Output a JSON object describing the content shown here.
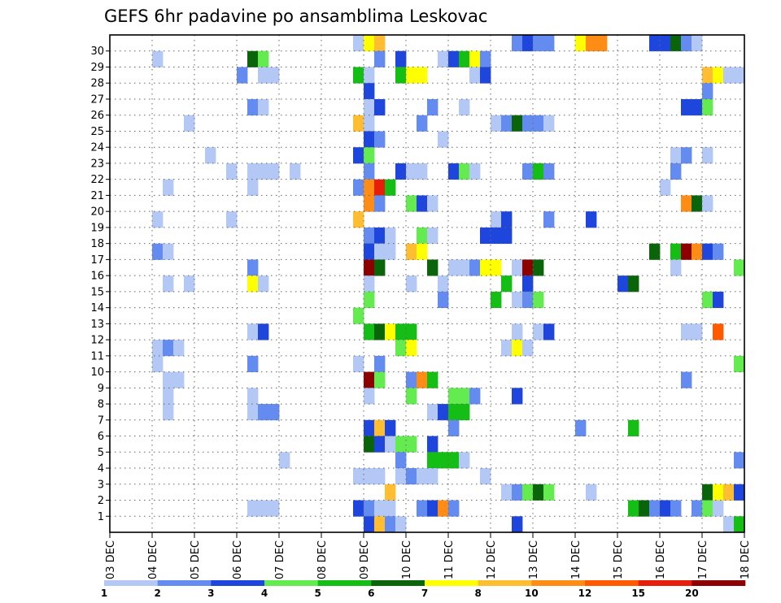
{
  "chart_data": {
    "type": "heatmap",
    "title": "GEFS 6hr padavine po ansamblima Leskovac",
    "xlabel": "",
    "ylabel": "",
    "x_tick_labels": [
      "03 DEC",
      "04 DEC",
      "05 DEC",
      "06 DEC",
      "07 DEC",
      "08 DEC",
      "09 DEC",
      "10 DEC",
      "11 DEC",
      "12 DEC",
      "13 DEC",
      "14 DEC",
      "15 DEC",
      "16 DEC",
      "17 DEC",
      "18 DEC"
    ],
    "y_members": [
      1,
      2,
      3,
      4,
      5,
      6,
      7,
      8,
      9,
      10,
      11,
      12,
      13,
      14,
      15,
      16,
      17,
      18,
      19,
      20,
      21,
      22,
      23,
      24,
      25,
      26,
      27,
      28,
      29,
      30
    ],
    "steps_per_day": 4,
    "grid": true,
    "legend_placement": "bottom",
    "color_bins": [
      {
        "label": "1",
        "color": "#b4c8f5"
      },
      {
        "label": "2",
        "color": "#648cf0"
      },
      {
        "label": "3",
        "color": "#1e46dc"
      },
      {
        "label": "4",
        "color": "#64eb50"
      },
      {
        "label": "5",
        "color": "#14be14"
      },
      {
        "label": "6",
        "color": "#0a640a"
      },
      {
        "label": "7",
        "color": "#ffff00"
      },
      {
        "label": "8",
        "color": "#ffbe32"
      },
      {
        "label": "10",
        "color": "#ff8c14"
      },
      {
        "label": "12",
        "color": "#ff5a00"
      },
      {
        "label": "15",
        "color": "#e61e0a"
      },
      {
        "label": "20",
        "color": "#8c0000"
      }
    ],
    "cells": [
      [
        30,
        23,
        0
      ],
      [
        30,
        24,
        6
      ],
      [
        30,
        25,
        7
      ],
      [
        30,
        38,
        1
      ],
      [
        30,
        39,
        2
      ],
      [
        30,
        40,
        1
      ],
      [
        30,
        41,
        1
      ],
      [
        30,
        44,
        6
      ],
      [
        30,
        45,
        8
      ],
      [
        30,
        46,
        8
      ],
      [
        30,
        51,
        2
      ],
      [
        30,
        52,
        2
      ],
      [
        30,
        53,
        5
      ],
      [
        30,
        54,
        1
      ],
      [
        30,
        55,
        0
      ],
      [
        29,
        4,
        0
      ],
      [
        29,
        13,
        5
      ],
      [
        29,
        14,
        3
      ],
      [
        29,
        25,
        1
      ],
      [
        29,
        27,
        2
      ],
      [
        29,
        31,
        0
      ],
      [
        29,
        32,
        2
      ],
      [
        29,
        33,
        4
      ],
      [
        29,
        34,
        6
      ],
      [
        29,
        35,
        1
      ],
      [
        28,
        12,
        1
      ],
      [
        28,
        14,
        0
      ],
      [
        28,
        15,
        0
      ],
      [
        28,
        23,
        4
      ],
      [
        28,
        24,
        0
      ],
      [
        28,
        27,
        4
      ],
      [
        28,
        28,
        6
      ],
      [
        28,
        29,
        6
      ],
      [
        28,
        34,
        0
      ],
      [
        28,
        35,
        2
      ],
      [
        28,
        56,
        7
      ],
      [
        28,
        57,
        6
      ],
      [
        28,
        58,
        0
      ],
      [
        28,
        59,
        0
      ],
      [
        27,
        24,
        2
      ],
      [
        27,
        56,
        1
      ],
      [
        26,
        13,
        1
      ],
      [
        26,
        14,
        0
      ],
      [
        26,
        24,
        0
      ],
      [
        26,
        25,
        2
      ],
      [
        26,
        30,
        1
      ],
      [
        26,
        33,
        0
      ],
      [
        26,
        54,
        2
      ],
      [
        26,
        55,
        2
      ],
      [
        26,
        56,
        3
      ],
      [
        25,
        7,
        0
      ],
      [
        25,
        23,
        7
      ],
      [
        25,
        24,
        0
      ],
      [
        25,
        29,
        1
      ],
      [
        25,
        36,
        0
      ],
      [
        25,
        37,
        1
      ],
      [
        25,
        38,
        5
      ],
      [
        25,
        39,
        1
      ],
      [
        25,
        40,
        1
      ],
      [
        25,
        41,
        0
      ],
      [
        24,
        24,
        2
      ],
      [
        24,
        25,
        1
      ],
      [
        24,
        31,
        0
      ],
      [
        23,
        9,
        0
      ],
      [
        23,
        23,
        2
      ],
      [
        23,
        24,
        3
      ],
      [
        23,
        53,
        0
      ],
      [
        23,
        54,
        1
      ],
      [
        23,
        56,
        0
      ],
      [
        22,
        11,
        0
      ],
      [
        22,
        13,
        0
      ],
      [
        22,
        14,
        0
      ],
      [
        22,
        15,
        0
      ],
      [
        22,
        17,
        0
      ],
      [
        22,
        24,
        1
      ],
      [
        22,
        27,
        2
      ],
      [
        22,
        28,
        0
      ],
      [
        22,
        29,
        0
      ],
      [
        22,
        32,
        2
      ],
      [
        22,
        33,
        3
      ],
      [
        22,
        34,
        0
      ],
      [
        22,
        39,
        1
      ],
      [
        22,
        40,
        4
      ],
      [
        22,
        41,
        1
      ],
      [
        22,
        53,
        1
      ],
      [
        21,
        5,
        0
      ],
      [
        21,
        13,
        0
      ],
      [
        21,
        23,
        1
      ],
      [
        21,
        24,
        8
      ],
      [
        21,
        25,
        10
      ],
      [
        21,
        26,
        4
      ],
      [
        21,
        52,
        0
      ],
      [
        20,
        24,
        8
      ],
      [
        20,
        25,
        1
      ],
      [
        20,
        28,
        3
      ],
      [
        20,
        29,
        2
      ],
      [
        20,
        30,
        0
      ],
      [
        20,
        54,
        8
      ],
      [
        20,
        55,
        5
      ],
      [
        20,
        56,
        0
      ],
      [
        19,
        4,
        0
      ],
      [
        19,
        11,
        0
      ],
      [
        19,
        23,
        7
      ],
      [
        19,
        36,
        0
      ],
      [
        19,
        37,
        2
      ],
      [
        19,
        41,
        1
      ],
      [
        19,
        45,
        2
      ],
      [
        18,
        24,
        1
      ],
      [
        18,
        25,
        2
      ],
      [
        18,
        26,
        0
      ],
      [
        18,
        29,
        3
      ],
      [
        18,
        30,
        0
      ],
      [
        18,
        35,
        2
      ],
      [
        18,
        36,
        2
      ],
      [
        18,
        37,
        2
      ],
      [
        17,
        4,
        1
      ],
      [
        17,
        5,
        0
      ],
      [
        17,
        24,
        2
      ],
      [
        17,
        25,
        0
      ],
      [
        17,
        26,
        0
      ],
      [
        17,
        28,
        7
      ],
      [
        17,
        29,
        6
      ],
      [
        17,
        51,
        5
      ],
      [
        17,
        53,
        4
      ],
      [
        17,
        54,
        11
      ],
      [
        17,
        55,
        8
      ],
      [
        17,
        56,
        2
      ],
      [
        17,
        57,
        1
      ],
      [
        16,
        13,
        1
      ],
      [
        16,
        24,
        11
      ],
      [
        16,
        25,
        5
      ],
      [
        16,
        30,
        5
      ],
      [
        16,
        32,
        0
      ],
      [
        16,
        33,
        0
      ],
      [
        16,
        34,
        1
      ],
      [
        16,
        35,
        6
      ],
      [
        16,
        36,
        6
      ],
      [
        16,
        38,
        0
      ],
      [
        16,
        39,
        11
      ],
      [
        16,
        40,
        5
      ],
      [
        16,
        53,
        0
      ],
      [
        16,
        59,
        3
      ],
      [
        15,
        5,
        0
      ],
      [
        15,
        7,
        0
      ],
      [
        15,
        13,
        6
      ],
      [
        15,
        14,
        0
      ],
      [
        15,
        24,
        0
      ],
      [
        15,
        28,
        0
      ],
      [
        15,
        31,
        0
      ],
      [
        15,
        37,
        4
      ],
      [
        15,
        39,
        2
      ],
      [
        15,
        48,
        2
      ],
      [
        15,
        49,
        5
      ],
      [
        14,
        24,
        3
      ],
      [
        14,
        31,
        1
      ],
      [
        14,
        36,
        4
      ],
      [
        14,
        38,
        0
      ],
      [
        14,
        39,
        1
      ],
      [
        14,
        40,
        3
      ],
      [
        14,
        56,
        3
      ],
      [
        14,
        57,
        2
      ],
      [
        13,
        23,
        3
      ],
      [
        12,
        13,
        0
      ],
      [
        12,
        14,
        2
      ],
      [
        12,
        24,
        4
      ],
      [
        12,
        25,
        5
      ],
      [
        12,
        26,
        6
      ],
      [
        12,
        27,
        4
      ],
      [
        12,
        28,
        4
      ],
      [
        12,
        38,
        0
      ],
      [
        12,
        40,
        0
      ],
      [
        12,
        41,
        2
      ],
      [
        12,
        54,
        0
      ],
      [
        12,
        55,
        0
      ],
      [
        12,
        57,
        9
      ],
      [
        11,
        4,
        0
      ],
      [
        11,
        5,
        1
      ],
      [
        11,
        6,
        0
      ],
      [
        11,
        27,
        3
      ],
      [
        11,
        28,
        6
      ],
      [
        11,
        37,
        0
      ],
      [
        11,
        38,
        6
      ],
      [
        11,
        39,
        0
      ],
      [
        10,
        4,
        0
      ],
      [
        10,
        13,
        1
      ],
      [
        10,
        23,
        0
      ],
      [
        10,
        25,
        1
      ],
      [
        10,
        59,
        3
      ],
      [
        9,
        5,
        0
      ],
      [
        9,
        6,
        0
      ],
      [
        9,
        24,
        11
      ],
      [
        9,
        25,
        3
      ],
      [
        9,
        28,
        1
      ],
      [
        9,
        29,
        8
      ],
      [
        9,
        30,
        4
      ],
      [
        9,
        54,
        1
      ],
      [
        8,
        5,
        0
      ],
      [
        8,
        13,
        0
      ],
      [
        8,
        24,
        0
      ],
      [
        8,
        28,
        3
      ],
      [
        8,
        32,
        3
      ],
      [
        8,
        33,
        3
      ],
      [
        8,
        34,
        1
      ],
      [
        8,
        38,
        2
      ],
      [
        7,
        5,
        0
      ],
      [
        7,
        13,
        0
      ],
      [
        7,
        14,
        1
      ],
      [
        7,
        15,
        1
      ],
      [
        7,
        30,
        0
      ],
      [
        7,
        31,
        2
      ],
      [
        7,
        32,
        4
      ],
      [
        7,
        33,
        4
      ],
      [
        6,
        24,
        2
      ],
      [
        6,
        25,
        7
      ],
      [
        6,
        26,
        2
      ],
      [
        6,
        32,
        1
      ],
      [
        6,
        44,
        1
      ],
      [
        6,
        49,
        4
      ],
      [
        5,
        24,
        5
      ],
      [
        5,
        25,
        2
      ],
      [
        5,
        26,
        0
      ],
      [
        5,
        27,
        3
      ],
      [
        5,
        28,
        3
      ],
      [
        5,
        30,
        2
      ],
      [
        4,
        16,
        0
      ],
      [
        4,
        27,
        1
      ],
      [
        4,
        30,
        4
      ],
      [
        4,
        31,
        4
      ],
      [
        4,
        32,
        4
      ],
      [
        4,
        33,
        0
      ],
      [
        4,
        59,
        1
      ],
      [
        3,
        23,
        0
      ],
      [
        3,
        24,
        0
      ],
      [
        3,
        25,
        0
      ],
      [
        3,
        27,
        0
      ],
      [
        3,
        28,
        1
      ],
      [
        3,
        29,
        0
      ],
      [
        3,
        30,
        0
      ],
      [
        3,
        35,
        0
      ],
      [
        2,
        26,
        7
      ],
      [
        2,
        37,
        0
      ],
      [
        2,
        38,
        1
      ],
      [
        2,
        39,
        3
      ],
      [
        2,
        40,
        5
      ],
      [
        2,
        41,
        3
      ],
      [
        2,
        45,
        0
      ],
      [
        2,
        56,
        5
      ],
      [
        2,
        57,
        6
      ],
      [
        2,
        58,
        7
      ],
      [
        2,
        59,
        2
      ],
      [
        1,
        13,
        0
      ],
      [
        1,
        14,
        0
      ],
      [
        1,
        15,
        0
      ],
      [
        1,
        23,
        2
      ],
      [
        1,
        24,
        1
      ],
      [
        1,
        25,
        0
      ],
      [
        1,
        26,
        0
      ],
      [
        1,
        29,
        1
      ],
      [
        1,
        30,
        2
      ],
      [
        1,
        31,
        8
      ],
      [
        1,
        32,
        1
      ],
      [
        1,
        49,
        4
      ],
      [
        1,
        50,
        5
      ],
      [
        1,
        51,
        1
      ],
      [
        1,
        52,
        2
      ],
      [
        1,
        53,
        1
      ],
      [
        1,
        55,
        1
      ],
      [
        1,
        56,
        3
      ],
      [
        1,
        57,
        0
      ],
      [
        0,
        24,
        2
      ],
      [
        0,
        25,
        7
      ],
      [
        0,
        26,
        1
      ],
      [
        0,
        27,
        0
      ],
      [
        0,
        38,
        2
      ],
      [
        0,
        58,
        0
      ],
      [
        0,
        59,
        4
      ]
    ]
  }
}
